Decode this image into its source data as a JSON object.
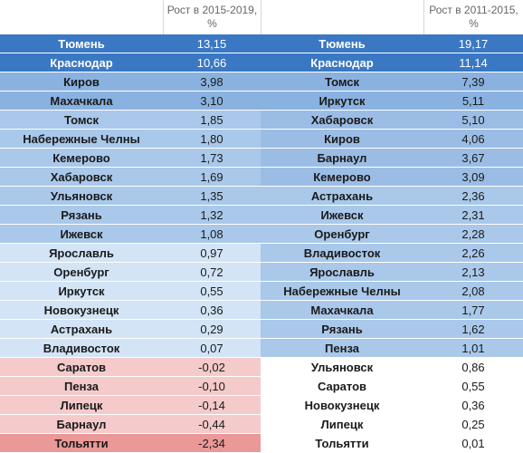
{
  "headers": {
    "col_2015_2019": "Рост в 2015-2019, %",
    "col_2011_2015": "Рост в 2011-2015, %"
  },
  "left": [
    {
      "city": "Тюмень",
      "value": "13,15",
      "shade": "dark"
    },
    {
      "city": "Краснодар",
      "value": "10,66",
      "shade": "dark"
    },
    {
      "city": "Киров",
      "value": "3,98",
      "shade": "mid"
    },
    {
      "city": "Махачкала",
      "value": "3,10",
      "shade": "mid"
    },
    {
      "city": "Томск",
      "value": "1,85",
      "shade": "light"
    },
    {
      "city": "Набережные Челны",
      "value": "1,80",
      "shade": "light"
    },
    {
      "city": "Кемерово",
      "value": "1,73",
      "shade": "light"
    },
    {
      "city": "Хабаровск",
      "value": "1,69",
      "shade": "light"
    },
    {
      "city": "Ульяновск",
      "value": "1,35",
      "shade": "light"
    },
    {
      "city": "Рязань",
      "value": "1,32",
      "shade": "light"
    },
    {
      "city": "Ижевск",
      "value": "1,08",
      "shade": "light"
    },
    {
      "city": "Ярославль",
      "value": "0,97",
      "shade": "pale"
    },
    {
      "city": "Оренбург",
      "value": "0,72",
      "shade": "pale"
    },
    {
      "city": "Иркутск",
      "value": "0,55",
      "shade": "pale"
    },
    {
      "city": "Новокузнецк",
      "value": "0,36",
      "shade": "pale"
    },
    {
      "city": "Астрахань",
      "value": "0,29",
      "shade": "pale"
    },
    {
      "city": "Владивосток",
      "value": "0,07",
      "shade": "pale"
    },
    {
      "city": "Саратов",
      "value": "-0,02",
      "shade": "pink"
    },
    {
      "city": "Пенза",
      "value": "-0,10",
      "shade": "pink"
    },
    {
      "city": "Липецк",
      "value": "-0,14",
      "shade": "pink"
    },
    {
      "city": "Барнаул",
      "value": "-0,44",
      "shade": "pink"
    },
    {
      "city": "Тольятти",
      "value": "-2,34",
      "shade": "red"
    }
  ],
  "right": [
    {
      "city": "Тюмень",
      "value": "19,17",
      "shade": "dark"
    },
    {
      "city": "Краснодар",
      "value": "11,14",
      "shade": "dark"
    },
    {
      "city": "Томск",
      "value": "7,39",
      "shade": "mid"
    },
    {
      "city": "Иркутск",
      "value": "5,11",
      "shade": "mid"
    },
    {
      "city": "Хабаровск",
      "value": "5,10",
      "shade": "mid"
    },
    {
      "city": "Киров",
      "value": "4,06",
      "shade": "mid"
    },
    {
      "city": "Барнаул",
      "value": "3,67",
      "shade": "mid"
    },
    {
      "city": "Кемерово",
      "value": "3,09",
      "shade": "mid"
    },
    {
      "city": "Астрахань",
      "value": "2,36",
      "shade": "light"
    },
    {
      "city": "Ижевск",
      "value": "2,31",
      "shade": "light"
    },
    {
      "city": "Оренбург",
      "value": "2,28",
      "shade": "light"
    },
    {
      "city": "Владивосток",
      "value": "2,26",
      "shade": "light"
    },
    {
      "city": "Ярославль",
      "value": "2,13",
      "shade": "light"
    },
    {
      "city": "Набережные Челны",
      "value": "2,08",
      "shade": "light"
    },
    {
      "city": "Махачкала",
      "value": "1,77",
      "shade": "light"
    },
    {
      "city": "Рязань",
      "value": "1,62",
      "shade": "light"
    },
    {
      "city": "Пенза",
      "value": "1,01",
      "shade": "light"
    },
    {
      "city": "Ульяновск",
      "value": "0,86",
      "shade": "white"
    },
    {
      "city": "Саратов",
      "value": "0,55",
      "shade": "white"
    },
    {
      "city": "Новокузнецк",
      "value": "0,36",
      "shade": "white"
    },
    {
      "city": "Липецк",
      "value": "0,25",
      "shade": "white"
    },
    {
      "city": "Тольятти",
      "value": "0,01",
      "shade": "white"
    }
  ],
  "colors": {
    "dark": "#3a78c4",
    "mid": "#8ab2e0",
    "light": "#a9c8ea",
    "pale": "#d2e4f5",
    "pink": "#f4caca",
    "red": "#ea9898",
    "white": "#ffffff"
  }
}
